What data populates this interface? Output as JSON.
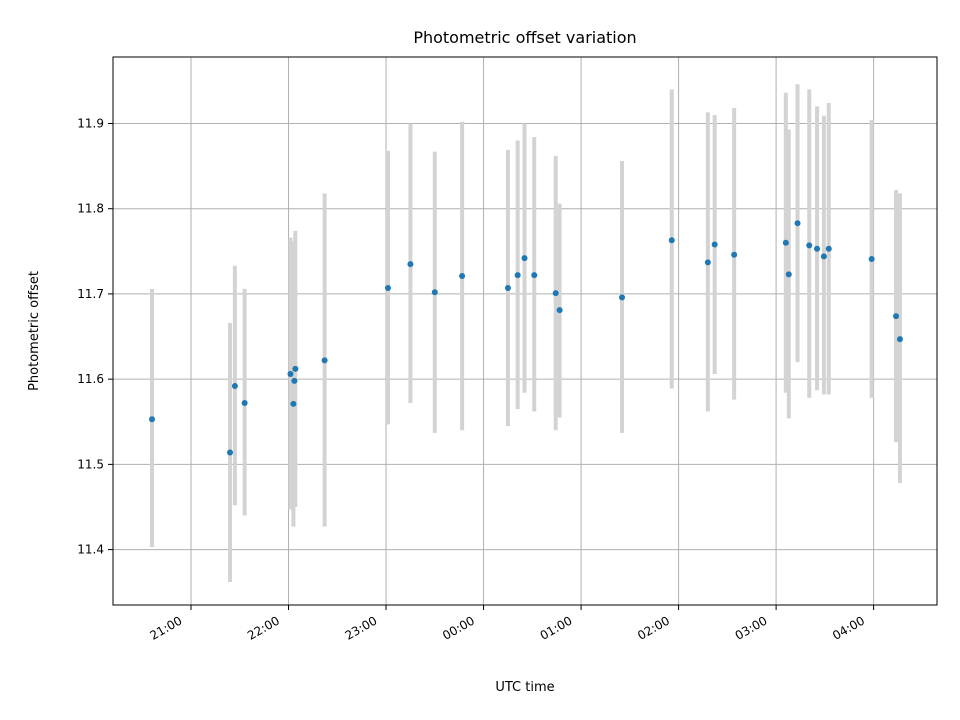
{
  "chart_data": {
    "type": "scatter",
    "title": "Photometric offset variation",
    "xlabel": "UTC time",
    "ylabel": "Photometric offset",
    "x_tick_labels": [
      "21:00",
      "22:00",
      "23:00",
      "00:00",
      "01:00",
      "02:00",
      "03:00",
      "04:00"
    ],
    "y_ticks": [
      11.4,
      11.5,
      11.6,
      11.7,
      11.8,
      11.9
    ],
    "x_range_hours": [
      20.2,
      28.65
    ],
    "ylim": [
      11.335,
      11.978
    ],
    "grid": true,
    "point_color": "#1f77b4",
    "errorbar_color": "#d3d3d3",
    "points": [
      {
        "t": 20.6,
        "y": 11.553,
        "lo": 11.403,
        "hi": 11.706
      },
      {
        "t": 21.4,
        "y": 11.514,
        "lo": 11.362,
        "hi": 11.666
      },
      {
        "t": 21.45,
        "y": 11.592,
        "lo": 11.452,
        "hi": 11.733
      },
      {
        "t": 21.55,
        "y": 11.572,
        "lo": 11.44,
        "hi": 11.706
      },
      {
        "t": 22.02,
        "y": 11.606,
        "lo": 11.447,
        "hi": 11.766
      },
      {
        "t": 22.05,
        "y": 11.571,
        "lo": 11.427,
        "hi": 11.762
      },
      {
        "t": 22.06,
        "y": 11.598,
        "lo": 11.45,
        "hi": 11.75
      },
      {
        "t": 22.07,
        "y": 11.612,
        "lo": 11.45,
        "hi": 11.774
      },
      {
        "t": 22.37,
        "y": 11.622,
        "lo": 11.427,
        "hi": 11.818
      },
      {
        "t": 23.02,
        "y": 11.707,
        "lo": 11.547,
        "hi": 11.868
      },
      {
        "t": 23.25,
        "y": 11.735,
        "lo": 11.572,
        "hi": 11.9
      },
      {
        "t": 23.5,
        "y": 11.702,
        "lo": 11.537,
        "hi": 11.867
      },
      {
        "t": 23.78,
        "y": 11.721,
        "lo": 11.54,
        "hi": 11.902
      },
      {
        "t": 24.25,
        "y": 11.707,
        "lo": 11.545,
        "hi": 11.869
      },
      {
        "t": 24.35,
        "y": 11.722,
        "lo": 11.565,
        "hi": 11.88
      },
      {
        "t": 24.42,
        "y": 11.742,
        "lo": 11.584,
        "hi": 11.9
      },
      {
        "t": 24.52,
        "y": 11.722,
        "lo": 11.562,
        "hi": 11.884
      },
      {
        "t": 24.74,
        "y": 11.701,
        "lo": 11.54,
        "hi": 11.862
      },
      {
        "t": 24.78,
        "y": 11.681,
        "lo": 11.555,
        "hi": 11.806
      },
      {
        "t": 25.42,
        "y": 11.696,
        "lo": 11.537,
        "hi": 11.856
      },
      {
        "t": 25.93,
        "y": 11.763,
        "lo": 11.589,
        "hi": 11.94
      },
      {
        "t": 26.3,
        "y": 11.737,
        "lo": 11.562,
        "hi": 11.913
      },
      {
        "t": 26.37,
        "y": 11.758,
        "lo": 11.606,
        "hi": 11.91
      },
      {
        "t": 26.57,
        "y": 11.746,
        "lo": 11.576,
        "hi": 11.918
      },
      {
        "t": 27.1,
        "y": 11.76,
        "lo": 11.584,
        "hi": 11.936
      },
      {
        "t": 27.13,
        "y": 11.723,
        "lo": 11.554,
        "hi": 11.893
      },
      {
        "t": 27.22,
        "y": 11.783,
        "lo": 11.62,
        "hi": 11.946
      },
      {
        "t": 27.34,
        "y": 11.757,
        "lo": 11.578,
        "hi": 11.94
      },
      {
        "t": 27.42,
        "y": 11.753,
        "lo": 11.587,
        "hi": 11.92
      },
      {
        "t": 27.49,
        "y": 11.744,
        "lo": 11.582,
        "hi": 11.909
      },
      {
        "t": 27.54,
        "y": 11.753,
        "lo": 11.582,
        "hi": 11.924
      },
      {
        "t": 27.98,
        "y": 11.741,
        "lo": 11.578,
        "hi": 11.904
      },
      {
        "t": 28.23,
        "y": 11.674,
        "lo": 11.526,
        "hi": 11.822
      },
      {
        "t": 28.27,
        "y": 11.647,
        "lo": 11.478,
        "hi": 11.818
      }
    ]
  }
}
